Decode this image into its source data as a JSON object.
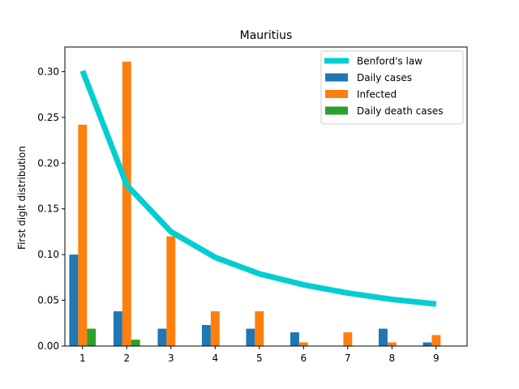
{
  "chart_data": {
    "type": "bar",
    "title": "Mauritius",
    "xlabel": "",
    "ylabel": "First digit distribution",
    "categories": [
      "1",
      "2",
      "3",
      "4",
      "5",
      "6",
      "7",
      "8",
      "9"
    ],
    "xlim": [
      0.6,
      9.7
    ],
    "ylim": [
      0,
      0.327
    ],
    "yticks": [
      0.0,
      0.05,
      0.1,
      0.15,
      0.2,
      0.25,
      0.3
    ],
    "ytick_labels": [
      "0.00",
      "0.05",
      "0.10",
      "0.15",
      "0.20",
      "0.25",
      "0.30"
    ],
    "series": [
      {
        "name": "Daily cases",
        "kind": "bar",
        "color": "#1f77b4",
        "values": [
          0.1,
          0.038,
          0.019,
          0.023,
          0.019,
          0.015,
          0.0,
          0.019,
          0.004
        ]
      },
      {
        "name": "Infected",
        "kind": "bar",
        "color": "#ff7f0e",
        "values": [
          0.242,
          0.311,
          0.12,
          0.038,
          0.038,
          0.004,
          0.015,
          0.004,
          0.012
        ]
      },
      {
        "name": "Daily death cases",
        "kind": "bar",
        "color": "#2ca02c",
        "values": [
          0.019,
          0.007,
          0.0,
          0.0,
          0.0,
          0.0,
          0.0,
          0.0,
          0.0
        ]
      },
      {
        "name": "Benford's law",
        "kind": "line",
        "color": "#00ced1",
        "values": [
          0.301,
          0.176,
          0.125,
          0.097,
          0.079,
          0.067,
          0.058,
          0.051,
          0.046
        ]
      }
    ],
    "legend": {
      "placement": "top-right",
      "order": [
        "Benford's law",
        "Daily cases",
        "Infected",
        "Daily death cases"
      ]
    },
    "grid": false
  }
}
